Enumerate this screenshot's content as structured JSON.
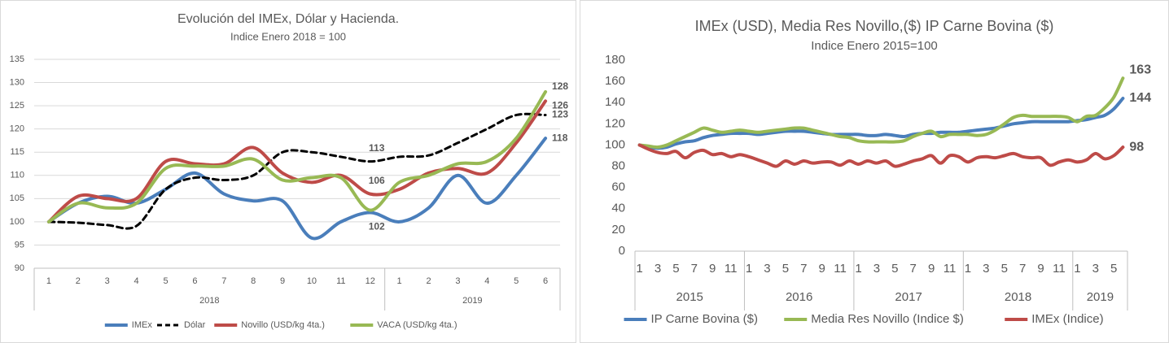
{
  "chart_data": [
    {
      "type": "line",
      "title": "Evolución del IMEx, Dólar y Hacienda.",
      "subtitle": "Indice Enero 2018 = 100",
      "categories": [
        "1",
        "2",
        "3",
        "4",
        "5",
        "6",
        "7",
        "8",
        "9",
        "10",
        "11",
        "12",
        "1",
        "2",
        "3",
        "4",
        "5",
        "6"
      ],
      "groups": [
        {
          "label": "2018",
          "span": 12
        },
        {
          "label": "2019",
          "span": 6
        }
      ],
      "ylim": [
        90,
        135
      ],
      "yticks": [
        90,
        95,
        100,
        105,
        110,
        115,
        120,
        125,
        130,
        135
      ],
      "grid": true,
      "legend": "bottom",
      "series": [
        {
          "name": "IMEx",
          "color": "#4a7ebb",
          "line_style": "solid",
          "values": [
            100,
            104,
            105.5,
            104,
            107,
            110.5,
            106,
            104.5,
            104.5,
            96.5,
            100,
            102,
            100,
            103,
            110,
            104,
            110,
            118
          ],
          "value_labels": [
            null,
            null,
            null,
            null,
            null,
            null,
            null,
            null,
            null,
            null,
            null,
            "102",
            null,
            null,
            null,
            null,
            null,
            "118"
          ]
        },
        {
          "name": "Dólar",
          "color": "#000000",
          "line_style": "dashed",
          "values": [
            100,
            99.8,
            99.3,
            99.1,
            107,
            109.5,
            109,
            110,
            115,
            115,
            114,
            113,
            114,
            114.3,
            117,
            120,
            123,
            123
          ],
          "value_labels": [
            null,
            null,
            null,
            null,
            null,
            null,
            null,
            null,
            null,
            null,
            null,
            "113",
            null,
            null,
            null,
            null,
            null,
            "123"
          ]
        },
        {
          "name": "Novillo (USD/kg 4ta.)",
          "color": "#be4b48",
          "line_style": "solid",
          "values": [
            100,
            105.5,
            105,
            105,
            113,
            112.5,
            112.5,
            116,
            110.5,
            108.5,
            110,
            106,
            107,
            110.5,
            111.5,
            110.5,
            117,
            126
          ],
          "value_labels": [
            null,
            null,
            null,
            null,
            null,
            null,
            null,
            null,
            null,
            null,
            null,
            "106",
            null,
            null,
            null,
            null,
            null,
            "126"
          ]
        },
        {
          "name": "VACA (USD/kg 4ta.)",
          "color": "#98b954",
          "line_style": "solid",
          "values": [
            100,
            104,
            103,
            104,
            111.5,
            112,
            112,
            113.5,
            109,
            109.5,
            109.5,
            102.5,
            108.5,
            110,
            112.5,
            113,
            118,
            128
          ],
          "value_labels": [
            null,
            null,
            null,
            null,
            null,
            null,
            null,
            null,
            null,
            null,
            null,
            null,
            null,
            null,
            null,
            null,
            null,
            "128"
          ]
        }
      ]
    },
    {
      "type": "line",
      "title": "IMEx (USD), Media Res Novillo,($) IP Carne Bovina ($)",
      "subtitle": "Indice Enero 2015=100",
      "categories": [
        "1",
        null,
        "3",
        null,
        "5",
        null,
        "7",
        null,
        "9",
        null,
        "11",
        null,
        "1",
        null,
        "3",
        null,
        "5",
        null,
        "7",
        null,
        "9",
        null,
        "11",
        null,
        "1",
        null,
        "3",
        null,
        "5",
        null,
        "7",
        null,
        "9",
        null,
        "11",
        null,
        "1",
        null,
        "3",
        null,
        "5",
        null,
        "7",
        null,
        "9",
        null,
        "11",
        null,
        "1",
        null,
        "3",
        null,
        "5",
        null
      ],
      "groups": [
        {
          "label": "2015",
          "span": 12
        },
        {
          "label": "2016",
          "span": 12
        },
        {
          "label": "2017",
          "span": 12
        },
        {
          "label": "2018",
          "span": 12
        },
        {
          "label": "2019",
          "span": 6
        }
      ],
      "ylim": [
        0,
        180
      ],
      "yticks": [
        0,
        20,
        40,
        60,
        80,
        100,
        120,
        140,
        160,
        180
      ],
      "grid": false,
      "legend": "bottom",
      "series": [
        {
          "name": "IP Carne Bovina ($)",
          "color": "#4a7ebb",
          "line_style": "solid",
          "values": [
            100,
            98,
            97,
            98,
            101,
            103,
            104,
            107,
            109,
            110,
            111,
            111,
            111,
            110,
            111,
            112,
            113,
            113,
            113,
            112,
            111,
            110,
            110,
            110,
            110,
            109,
            109,
            110,
            109,
            108,
            110,
            111,
            111,
            112,
            112,
            112,
            113,
            114,
            115,
            116,
            118,
            120,
            121,
            122,
            122,
            122,
            122,
            122,
            123,
            124,
            126,
            128,
            134,
            144
          ],
          "value_labels": [
            null,
            null,
            null,
            null,
            null,
            null,
            null,
            null,
            null,
            null,
            null,
            null,
            null,
            null,
            null,
            null,
            null,
            null,
            null,
            null,
            null,
            null,
            null,
            null,
            null,
            null,
            null,
            null,
            null,
            null,
            null,
            null,
            null,
            null,
            null,
            null,
            null,
            null,
            null,
            null,
            null,
            null,
            null,
            null,
            null,
            null,
            null,
            null,
            null,
            null,
            null,
            null,
            null,
            "144"
          ]
        },
        {
          "name": "Media Res Novillo (Indice $)",
          "color": "#98b954",
          "line_style": "solid",
          "values": [
            100,
            99,
            98,
            100,
            104,
            108,
            112,
            116,
            114,
            112,
            113,
            114,
            113,
            112,
            113,
            114,
            115,
            116,
            116,
            114,
            112,
            110,
            108,
            107,
            104,
            103,
            103,
            103,
            103,
            104,
            108,
            111,
            113,
            108,
            110,
            110,
            110,
            109,
            110,
            114,
            120,
            126,
            128,
            127,
            127,
            127,
            127,
            126,
            122,
            127,
            128,
            135,
            145,
            163
          ],
          "value_labels": [
            null,
            null,
            null,
            null,
            null,
            null,
            null,
            null,
            null,
            null,
            null,
            null,
            null,
            null,
            null,
            null,
            null,
            null,
            null,
            null,
            null,
            null,
            null,
            null,
            null,
            null,
            null,
            null,
            null,
            null,
            null,
            null,
            null,
            null,
            null,
            null,
            null,
            null,
            null,
            null,
            null,
            null,
            null,
            null,
            null,
            null,
            null,
            null,
            null,
            null,
            null,
            null,
            null,
            "163"
          ]
        },
        {
          "name": "IMEx (Indice)",
          "color": "#be4b48",
          "line_style": "solid",
          "values": [
            100,
            96,
            93,
            92,
            94,
            88,
            93,
            95,
            91,
            92,
            89,
            91,
            89,
            86,
            83,
            80,
            85,
            82,
            85,
            83,
            84,
            84,
            81,
            85,
            82,
            85,
            83,
            85,
            80,
            82,
            85,
            87,
            90,
            83,
            90,
            89,
            84,
            88,
            89,
            88,
            90,
            92,
            89,
            88,
            88,
            81,
            84,
            86,
            84,
            86,
            92,
            87,
            90,
            98
          ],
          "value_labels": [
            null,
            null,
            null,
            null,
            null,
            null,
            null,
            null,
            null,
            null,
            null,
            null,
            null,
            null,
            null,
            null,
            null,
            null,
            null,
            null,
            null,
            null,
            null,
            null,
            null,
            null,
            null,
            null,
            null,
            null,
            null,
            null,
            null,
            null,
            null,
            null,
            null,
            null,
            null,
            null,
            null,
            null,
            null,
            null,
            null,
            null,
            null,
            null,
            null,
            null,
            null,
            null,
            null,
            "98"
          ]
        }
      ]
    }
  ]
}
